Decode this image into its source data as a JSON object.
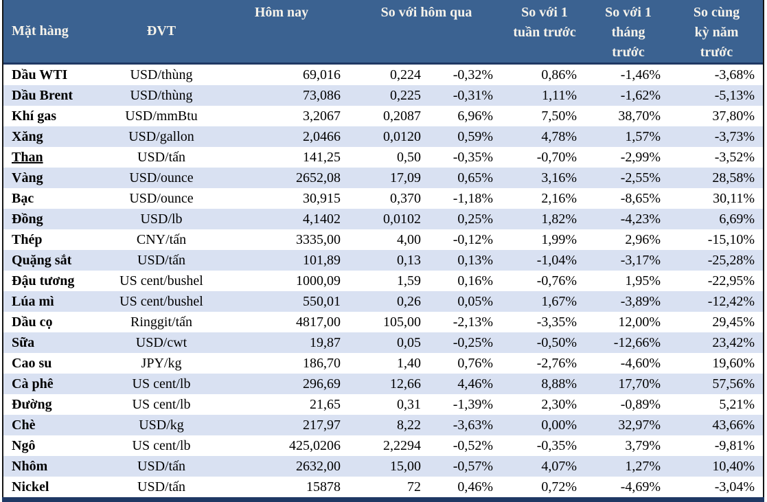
{
  "colors": {
    "header_bg": "#3B6291",
    "header_text": "#F5F2EA",
    "band_row_bg": "#D9E1F2",
    "row_bg": "#FFFFFF",
    "accent_bar": "#1F3864",
    "border": "#141414",
    "text": "#000000"
  },
  "table": {
    "headers": {
      "product": "Mặt hàng",
      "unit": "ĐVT",
      "today": "Hôm nay",
      "vs_yesterday": "So với hôm qua",
      "vs_week": "So với 1 tuần trước",
      "vs_month": "So với 1 tháng trước",
      "vs_year": "So cùng kỳ năm trước"
    },
    "rows": [
      {
        "name": "Dầu WTI",
        "underlined": false,
        "unit": "USD/thùng",
        "today": "69,016",
        "change": "0,224",
        "pct_day": "-0,32%",
        "pct_week": "0,86%",
        "pct_month": "-1,46%",
        "pct_year": "-3,68%"
      },
      {
        "name": "Dầu Brent",
        "underlined": false,
        "unit": "USD/thùng",
        "today": "73,086",
        "change": "0,225",
        "pct_day": "-0,31%",
        "pct_week": "1,11%",
        "pct_month": "-1,62%",
        "pct_year": "-5,13%"
      },
      {
        "name": "Khí gas",
        "underlined": false,
        "unit": "USD/mmBtu",
        "today": "3,2067",
        "change": "0,2087",
        "pct_day": "6,96%",
        "pct_week": "7,50%",
        "pct_month": "38,70%",
        "pct_year": "37,80%"
      },
      {
        "name": "Xăng",
        "underlined": false,
        "unit": "USD/gallon",
        "today": "2,0466",
        "change": "0,0120",
        "pct_day": "0,59%",
        "pct_week": "4,78%",
        "pct_month": "1,57%",
        "pct_year": "-3,73%"
      },
      {
        "name": "Than",
        "underlined": true,
        "unit": "USD/tấn",
        "today": "141,25",
        "change": "0,50",
        "pct_day": "-0,35%",
        "pct_week": "-0,70%",
        "pct_month": "-2,99%",
        "pct_year": "-3,52%"
      },
      {
        "name": "Vàng",
        "underlined": false,
        "unit": "USD/ounce",
        "today": "2652,08",
        "change": "17,09",
        "pct_day": "0,65%",
        "pct_week": "3,16%",
        "pct_month": "-2,55%",
        "pct_year": "28,58%"
      },
      {
        "name": "Bạc",
        "underlined": false,
        "unit": "USD/ounce",
        "today": "30,915",
        "change": "0,370",
        "pct_day": "-1,18%",
        "pct_week": "2,16%",
        "pct_month": "-8,65%",
        "pct_year": "30,11%"
      },
      {
        "name": "Đồng",
        "underlined": false,
        "unit": "USD/lb",
        "today": "4,1402",
        "change": "0,0102",
        "pct_day": "0,25%",
        "pct_week": "1,82%",
        "pct_month": "-4,23%",
        "pct_year": "6,69%"
      },
      {
        "name": "Thép",
        "underlined": false,
        "unit": "CNY/tấn",
        "today": "3335,00",
        "change": "4,00",
        "pct_day": "-0,12%",
        "pct_week": "1,99%",
        "pct_month": "2,96%",
        "pct_year": "-15,10%"
      },
      {
        "name": "Quặng sắt",
        "underlined": false,
        "unit": "USD/tấn",
        "today": "101,89",
        "change": "0,13",
        "pct_day": "0,13%",
        "pct_week": "-1,04%",
        "pct_month": "-3,17%",
        "pct_year": "-25,28%"
      },
      {
        "name": "Đậu tương",
        "underlined": false,
        "unit": "US cent/bushel",
        "today": "1000,09",
        "change": "1,59",
        "pct_day": "0,16%",
        "pct_week": "-0,76%",
        "pct_month": "1,95%",
        "pct_year": "-22,95%"
      },
      {
        "name": "Lúa mì",
        "underlined": false,
        "unit": "US cent/bushel",
        "today": "550,01",
        "change": "0,26",
        "pct_day": "0,05%",
        "pct_week": "1,67%",
        "pct_month": "-3,89%",
        "pct_year": "-12,42%"
      },
      {
        "name": "Dầu cọ",
        "underlined": false,
        "unit": "Ringgit/tấn",
        "today": "4817,00",
        "change": "105,00",
        "pct_day": "-2,13%",
        "pct_week": "-3,35%",
        "pct_month": "12,00%",
        "pct_year": "29,45%"
      },
      {
        "name": "Sữa",
        "underlined": false,
        "unit": "USD/cwt",
        "today": "19,87",
        "change": "0,05",
        "pct_day": "-0,25%",
        "pct_week": "-0,50%",
        "pct_month": "-12,66%",
        "pct_year": "23,42%"
      },
      {
        "name": "Cao su",
        "underlined": false,
        "unit": "JPY/kg",
        "today": "186,70",
        "change": "1,40",
        "pct_day": "0,76%",
        "pct_week": "-2,76%",
        "pct_month": "-4,60%",
        "pct_year": "19,60%"
      },
      {
        "name": "Cà phê",
        "underlined": false,
        "unit": "US cent/lb",
        "today": "296,69",
        "change": "12,66",
        "pct_day": "4,46%",
        "pct_week": "8,88%",
        "pct_month": "17,70%",
        "pct_year": "57,56%"
      },
      {
        "name": "Đường",
        "underlined": false,
        "unit": "US cent/lb",
        "today": "21,65",
        "change": "0,31",
        "pct_day": "-1,39%",
        "pct_week": "2,30%",
        "pct_month": "-0,89%",
        "pct_year": "5,21%"
      },
      {
        "name": "Chè",
        "underlined": false,
        "unit": "USD/kg",
        "today": "217,97",
        "change": "8,22",
        "pct_day": "-3,63%",
        "pct_week": "0,00%",
        "pct_month": "32,97%",
        "pct_year": "43,66%"
      },
      {
        "name": "Ngô",
        "underlined": false,
        "unit": "US cent/lb",
        "today": "425,0206",
        "change": "2,2294",
        "pct_day": "-0,52%",
        "pct_week": "-0,35%",
        "pct_month": "3,79%",
        "pct_year": "-9,81%"
      },
      {
        "name": "Nhôm",
        "underlined": false,
        "unit": "USD/tấn",
        "today": "2632,00",
        "change": "15,00",
        "pct_day": "-0,57%",
        "pct_week": "4,07%",
        "pct_month": "1,27%",
        "pct_year": "10,40%"
      },
      {
        "name": "Nickel",
        "underlined": false,
        "unit": "USD/tấn",
        "today": "15878",
        "change": "72",
        "pct_day": "0,46%",
        "pct_week": "0,72%",
        "pct_month": "-4,69%",
        "pct_year": "-3,04%"
      }
    ]
  }
}
